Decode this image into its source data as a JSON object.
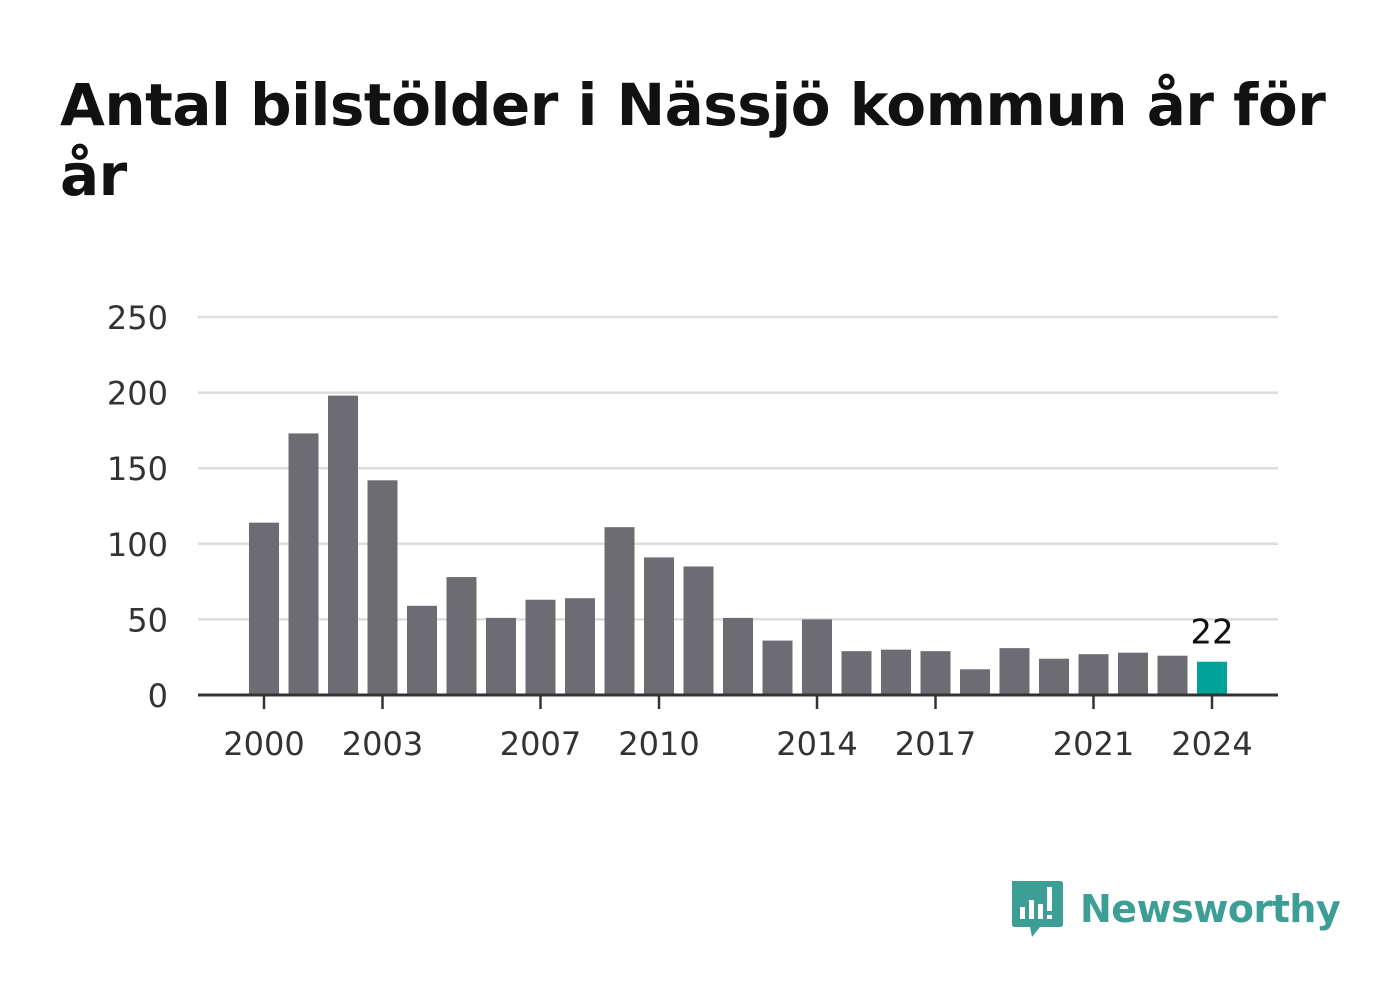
{
  "title": "Antal bilstölder i Nässjö kommun år för år",
  "chart_data": {
    "type": "bar",
    "title": "Antal bilstölder i Nässjö kommun år för år",
    "xlabel": "",
    "ylabel": "",
    "categories": [
      "2000",
      "2001",
      "2002",
      "2003",
      "2004",
      "2005",
      "2006",
      "2007",
      "2008",
      "2009",
      "2010",
      "2011",
      "2012",
      "2013",
      "2014",
      "2015",
      "2016",
      "2017",
      "2018",
      "2019",
      "2020",
      "2021",
      "2022",
      "2023",
      "2024"
    ],
    "values": [
      114,
      173,
      198,
      142,
      59,
      78,
      51,
      63,
      64,
      111,
      91,
      85,
      51,
      36,
      50,
      29,
      30,
      29,
      17,
      31,
      24,
      27,
      28,
      26,
      22
    ],
    "ylim": [
      0,
      250
    ],
    "yticks": [
      0,
      50,
      100,
      150,
      200,
      250
    ],
    "xtick_labels": [
      "2000",
      "2003",
      "2007",
      "2010",
      "2014",
      "2017",
      "2021",
      "2024"
    ],
    "highlight_index": 24,
    "highlight_label": "22",
    "colors": {
      "bar": "#6d6c72",
      "highlight": "#00a39a",
      "grid": "#dddddd",
      "axis": "#333333",
      "tick_text": "#333333"
    },
    "grid": true
  },
  "brand": {
    "name": "Newsworthy",
    "icon": "newsworthy-logo-icon",
    "color": "#3d9e95"
  }
}
